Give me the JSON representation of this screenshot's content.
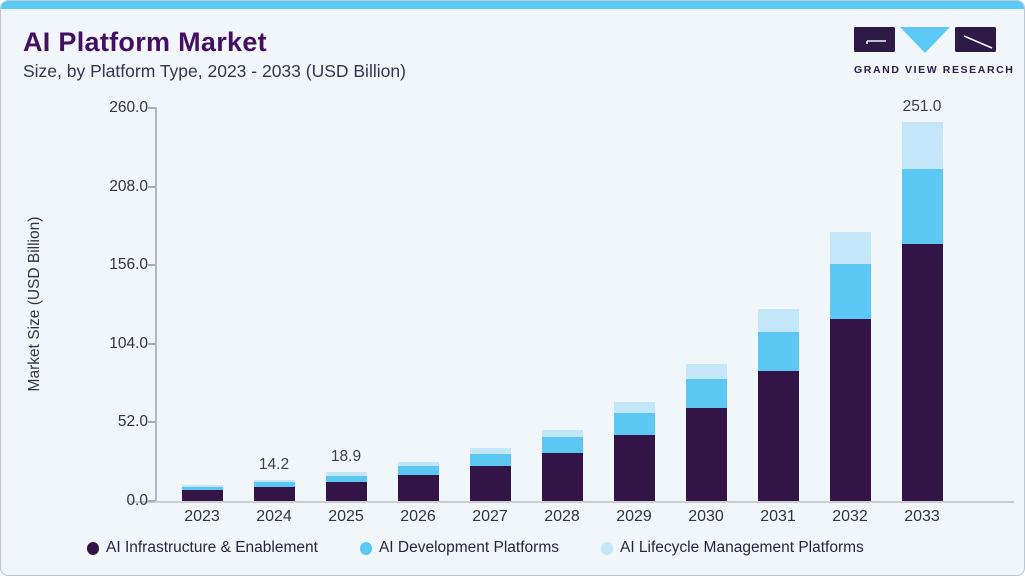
{
  "header": {
    "title": "AI Platform Market",
    "subtitle": "Size, by Platform Type, 2023 - 2033 (USD Billion)"
  },
  "logo": {
    "text": "GRAND VIEW RESEARCH"
  },
  "colors": {
    "accent_topbar": "#5bc9f4",
    "title_purple": "#440f63",
    "infrastructure": "#321446",
    "development": "#5bc7f2",
    "lifecycle": "#c3e6f8",
    "card_background": "#f0f6fa"
  },
  "chart_data": {
    "type": "bar",
    "stacked": true,
    "title": "AI Platform Market Size, by Platform Type, 2023 - 2033 (USD Billion)",
    "categories": [
      "2023",
      "2024",
      "2025",
      "2026",
      "2027",
      "2028",
      "2029",
      "2030",
      "2031",
      "2032",
      "2033"
    ],
    "series": [
      {
        "name": "AI Infrastructure & Enablement",
        "color": "#321446",
        "values": [
          7.1,
          9.5,
          12.7,
          17.0,
          23.2,
          31.9,
          43.9,
          61.3,
          85.8,
          120.4,
          169.8
        ]
      },
      {
        "name": "AI Development Platforms",
        "color": "#5bc7f2",
        "values": [
          2.3,
          2.9,
          3.9,
          5.9,
          7.7,
          10.6,
          14.6,
          19.2,
          25.8,
          36.1,
          50.0
        ]
      },
      {
        "name": "AI Lifecycle Management Platforms",
        "color": "#c3e6f8",
        "values": [
          1.3,
          1.8,
          2.3,
          3.1,
          4.0,
          4.8,
          7.1,
          10.1,
          15.2,
          21.5,
          31.2
        ]
      }
    ],
    "totals": [
      10.7,
      14.2,
      18.9,
      26.0,
      34.9,
      47.3,
      65.6,
      90.6,
      126.8,
      178.0,
      251.0
    ],
    "bar_labels": [
      "",
      "14.2",
      "18.9",
      "",
      "",
      "",
      "",
      "",
      "",
      "",
      "251.0"
    ],
    "ylabel": "Market Size (USD Billion)",
    "xlabel": "",
    "y_ticks": [
      "0.0",
      "52.0",
      "104.0",
      "156.0",
      "208.0",
      "260.0"
    ],
    "ylim": [
      0,
      260
    ],
    "grid": false,
    "legend_position": "bottom"
  }
}
